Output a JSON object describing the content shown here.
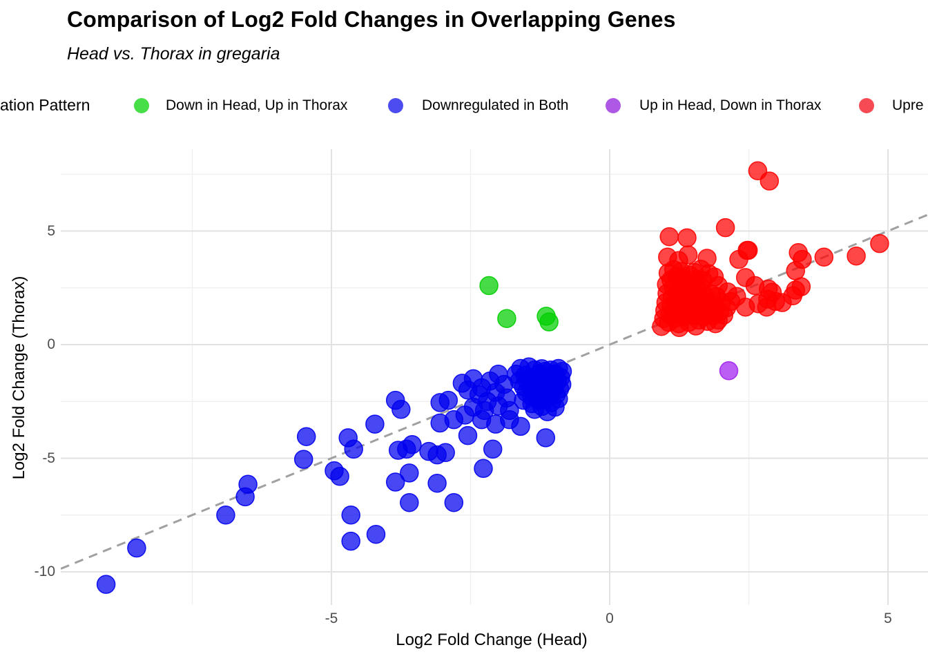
{
  "header": {
    "title": "Comparison of Log2 Fold Changes in Overlapping Genes",
    "subtitle": "Head vs. Thorax in gregaria"
  },
  "legend": {
    "title_visible": "ation Pattern",
    "items": [
      {
        "label": "Down in Head, Up in Thorax",
        "dot_color": "#47de47"
      },
      {
        "label": "Downregulated in Both",
        "dot_color": "#4c4cf0"
      },
      {
        "label": "Up in Head, Down in Thorax",
        "dot_color": "#ae58e6"
      },
      {
        "label": "Upre",
        "dot_color": "#f64b55"
      }
    ]
  },
  "axes": {
    "x_title": "Log2 Fold Change (Head)",
    "y_title": "Log2 Fold Change (Thorax)",
    "x_tick_labels": [
      "-5",
      "0",
      "5"
    ],
    "y_tick_labels": [
      "5",
      "0",
      "-5",
      "-10"
    ]
  },
  "chart_data": {
    "type": "scatter",
    "title": "Comparison of Log2 Fold Changes in Overlapping Genes",
    "subtitle": "Head vs. Thorax in gregaria",
    "xlabel": "Log2 Fold Change (Head)",
    "ylabel": "Log2 Fold Change (Thorax)",
    "xlim": [
      -9.9,
      5.7
    ],
    "ylim": [
      -11.5,
      8.6
    ],
    "x_ticks": [
      -5,
      0,
      5
    ],
    "y_ticks": [
      5,
      0,
      -5,
      -10
    ],
    "grid": "major and minor, light gray on white",
    "legend_position": "top",
    "reference_line": {
      "type": "identity y=x",
      "style": "dashed",
      "color": "#a0a0a0"
    },
    "series": [
      {
        "name": "Down in Head, Up in Thorax",
        "color": "#00ce00",
        "points": [
          [
            -2.17,
            2.6
          ],
          [
            -1.85,
            1.15
          ],
          [
            -1.14,
            1.25
          ],
          [
            -1.09,
            1.0
          ]
        ]
      },
      {
        "name": "Downregulated in Both",
        "color": "#0000ee",
        "points": [
          [
            -9.05,
            -10.55
          ],
          [
            -8.5,
            -8.95
          ],
          [
            -6.9,
            -7.5
          ],
          [
            -6.5,
            -6.15
          ],
          [
            -6.55,
            -6.7
          ],
          [
            -5.45,
            -4.05
          ],
          [
            -5.5,
            -5.05
          ],
          [
            -4.95,
            -5.55
          ],
          [
            -4.85,
            -5.8
          ],
          [
            -4.7,
            -4.1
          ],
          [
            -4.6,
            -4.6
          ],
          [
            -4.65,
            -7.5
          ],
          [
            -4.65,
            -8.65
          ],
          [
            -4.2,
            -8.35
          ],
          [
            -4.22,
            -3.5
          ],
          [
            -3.85,
            -2.45
          ],
          [
            -3.75,
            -2.85
          ],
          [
            -3.8,
            -4.65
          ],
          [
            -3.65,
            -4.6
          ],
          [
            -3.55,
            -4.4
          ],
          [
            -3.85,
            -6.05
          ],
          [
            -3.6,
            -5.65
          ],
          [
            -3.6,
            -6.95
          ],
          [
            -3.25,
            -4.7
          ],
          [
            -3.1,
            -4.85
          ],
          [
            -2.95,
            -4.75
          ],
          [
            -3.1,
            -6.1
          ],
          [
            -2.8,
            -6.95
          ],
          [
            -3.05,
            -2.55
          ],
          [
            -2.9,
            -2.45
          ],
          [
            -3.05,
            -3.45
          ],
          [
            -2.8,
            -3.3
          ],
          [
            -2.55,
            -2.0
          ],
          [
            -2.55,
            -4.0
          ],
          [
            -2.27,
            -5.45
          ],
          [
            -2.1,
            -4.6
          ],
          [
            -2.65,
            -1.7
          ],
          [
            -2.45,
            -1.5
          ],
          [
            -2.3,
            -1.9
          ],
          [
            -2.15,
            -1.6
          ],
          [
            -2.0,
            -1.3
          ],
          [
            -1.9,
            -1.75
          ],
          [
            -2.35,
            -2.2
          ],
          [
            -2.2,
            -2.5
          ],
          [
            -2.05,
            -2.1
          ],
          [
            -1.85,
            -2.35
          ],
          [
            -2.45,
            -2.75
          ],
          [
            -2.25,
            -2.9
          ],
          [
            -2.0,
            -2.7
          ],
          [
            -1.8,
            -2.9
          ],
          [
            -2.6,
            -3.1
          ],
          [
            -2.3,
            -3.3
          ],
          [
            -2.05,
            -3.5
          ],
          [
            -1.8,
            -3.3
          ],
          [
            -1.6,
            -3.6
          ],
          [
            -1.15,
            -4.1
          ],
          [
            -1.68,
            -1.3
          ],
          [
            -1.62,
            -1.6
          ],
          [
            -1.6,
            -1.05
          ],
          [
            -1.55,
            -1.85
          ],
          [
            -1.52,
            -1.35
          ],
          [
            -1.5,
            -2.1
          ],
          [
            -1.48,
            -1.6
          ],
          [
            -1.45,
            -0.98
          ],
          [
            -1.42,
            -1.85
          ],
          [
            -1.4,
            -2.3
          ],
          [
            -1.38,
            -1.45
          ],
          [
            -1.35,
            -1.12
          ],
          [
            -1.33,
            -2.0
          ],
          [
            -1.3,
            -1.7
          ],
          [
            -1.28,
            -2.45
          ],
          [
            -1.26,
            -1.28
          ],
          [
            -1.24,
            -1.9
          ],
          [
            -1.22,
            -1.06
          ],
          [
            -1.2,
            -2.2
          ],
          [
            -1.18,
            -1.55
          ],
          [
            -1.16,
            -1.18
          ],
          [
            -1.14,
            -1.95
          ],
          [
            -1.12,
            -1.42
          ],
          [
            -1.1,
            -2.35
          ],
          [
            -1.08,
            -1.72
          ],
          [
            -1.06,
            -1.12
          ],
          [
            -1.04,
            -2.05
          ],
          [
            -1.02,
            -1.5
          ],
          [
            -1.0,
            -1.88
          ],
          [
            -0.98,
            -1.28
          ],
          [
            -0.96,
            -2.2
          ],
          [
            -0.94,
            -1.62
          ],
          [
            -0.92,
            -1.05
          ],
          [
            -0.9,
            -1.95
          ],
          [
            -0.88,
            -1.45
          ],
          [
            -0.86,
            -1.75
          ],
          [
            -0.85,
            -1.18
          ],
          [
            -1.55,
            -2.45
          ],
          [
            -1.4,
            -2.6
          ],
          [
            -1.22,
            -2.72
          ],
          [
            -1.05,
            -2.55
          ],
          [
            -0.92,
            -2.38
          ],
          [
            -1.35,
            -2.85
          ],
          [
            -1.12,
            -2.95
          ],
          [
            -0.98,
            -2.75
          ]
        ]
      },
      {
        "name": "Up in Head, Down in Thorax",
        "color": "#a020f0",
        "points": [
          [
            2.14,
            -1.15
          ]
        ]
      },
      {
        "name": "Upre",
        "color": "#ff0000",
        "points": [
          [
            2.66,
            7.65
          ],
          [
            2.87,
            7.2
          ],
          [
            2.08,
            5.15
          ],
          [
            1.07,
            4.75
          ],
          [
            1.39,
            4.7
          ],
          [
            4.85,
            4.45
          ],
          [
            1.04,
            3.85
          ],
          [
            1.41,
            3.95
          ],
          [
            1.24,
            3.7
          ],
          [
            1.75,
            3.8
          ],
          [
            2.47,
            4.15
          ],
          [
            2.32,
            3.75
          ],
          [
            4.43,
            3.9
          ],
          [
            3.85,
            3.85
          ],
          [
            3.39,
            4.05
          ],
          [
            3.46,
            3.75
          ],
          [
            3.34,
            3.25
          ],
          [
            3.44,
            2.55
          ],
          [
            3.34,
            2.4
          ],
          [
            3.29,
            2.15
          ],
          [
            2.85,
            2.45
          ],
          [
            2.92,
            2.3
          ],
          [
            2.84,
            2.0
          ],
          [
            2.98,
            1.9
          ],
          [
            3.1,
            1.85
          ],
          [
            2.67,
            1.8
          ],
          [
            2.82,
            1.65
          ],
          [
            2.49,
            4.15
          ],
          [
            2.44,
            2.95
          ],
          [
            2.61,
            2.6
          ],
          [
            2.44,
            1.65
          ],
          [
            0.97,
            1.15
          ],
          [
            0.99,
            1.5
          ],
          [
            1.01,
            1.85
          ],
          [
            1.03,
            2.25
          ],
          [
            1.06,
            0.98
          ],
          [
            1.08,
            1.32
          ],
          [
            1.1,
            1.68
          ],
          [
            1.12,
            2.05
          ],
          [
            1.14,
            2.5
          ],
          [
            1.16,
            1.15
          ],
          [
            1.18,
            1.52
          ],
          [
            1.2,
            1.88
          ],
          [
            1.22,
            2.28
          ],
          [
            1.24,
            0.92
          ],
          [
            1.26,
            1.38
          ],
          [
            1.28,
            1.72
          ],
          [
            1.3,
            2.12
          ],
          [
            1.32,
            2.62
          ],
          [
            1.34,
            1.22
          ],
          [
            1.36,
            1.58
          ],
          [
            1.38,
            1.98
          ],
          [
            1.4,
            2.38
          ],
          [
            1.42,
            0.98
          ],
          [
            1.44,
            1.42
          ],
          [
            1.46,
            1.78
          ],
          [
            1.48,
            2.18
          ],
          [
            1.5,
            2.72
          ],
          [
            1.52,
            1.28
          ],
          [
            1.54,
            1.62
          ],
          [
            1.56,
            2.02
          ],
          [
            1.58,
            2.42
          ],
          [
            1.6,
            1.08
          ],
          [
            1.62,
            1.48
          ],
          [
            1.64,
            1.92
          ],
          [
            1.66,
            2.32
          ],
          [
            1.68,
            1.22
          ],
          [
            1.7,
            1.68
          ],
          [
            1.72,
            2.08
          ],
          [
            1.74,
            1.52
          ],
          [
            1.76,
            1.02
          ],
          [
            1.78,
            1.38
          ],
          [
            1.8,
            1.82
          ],
          [
            1.83,
            2.22
          ],
          [
            1.86,
            1.28
          ],
          [
            1.89,
            1.72
          ],
          [
            1.92,
            2.12
          ],
          [
            1.95,
            1.08
          ],
          [
            1.98,
            1.45
          ],
          [
            2.01,
            1.85
          ],
          [
            2.05,
            1.3
          ],
          [
            1.02,
            2.65
          ],
          [
            1.1,
            2.85
          ],
          [
            1.2,
            3.0
          ],
          [
            1.32,
            2.92
          ],
          [
            1.44,
            3.05
          ],
          [
            1.56,
            2.88
          ],
          [
            1.3,
            2.5
          ],
          [
            1.48,
            2.6
          ],
          [
            1.68,
            2.82
          ],
          [
            1.62,
            2.58
          ],
          [
            1.05,
            3.15
          ],
          [
            1.15,
            3.3
          ],
          [
            1.28,
            3.22
          ],
          [
            1.52,
            3.18
          ],
          [
            1.64,
            3.32
          ],
          [
            1.78,
            3.12
          ],
          [
            1.88,
            2.98
          ],
          [
            1.95,
            2.6
          ],
          [
            2.1,
            1.62
          ],
          [
            2.18,
            1.9
          ],
          [
            2.28,
            2.12
          ],
          [
            2.12,
            2.32
          ],
          [
            1.9,
            0.92
          ],
          [
            1.55,
            0.82
          ],
          [
            1.25,
            0.75
          ],
          [
            0.93,
            0.8
          ]
        ]
      }
    ]
  }
}
